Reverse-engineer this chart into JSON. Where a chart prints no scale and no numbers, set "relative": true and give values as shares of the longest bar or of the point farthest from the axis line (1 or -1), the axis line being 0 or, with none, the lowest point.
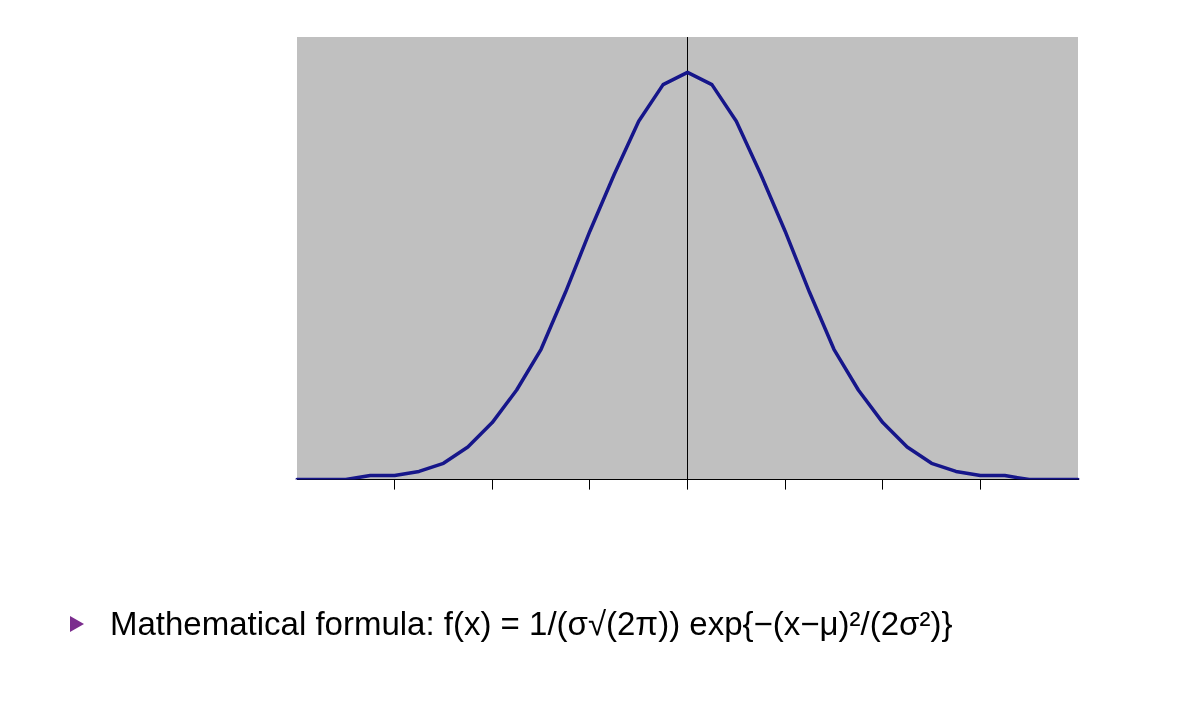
{
  "chart_data": {
    "type": "line",
    "relative": true,
    "color": "#16168a",
    "categories": [
      null,
      null,
      null,
      null,
      null,
      null,
      null,
      null,
      null,
      null,
      null,
      null,
      null,
      null,
      null,
      null,
      null,
      null,
      null,
      null,
      null,
      null,
      null,
      null,
      null,
      null,
      null,
      null,
      null,
      null,
      null,
      null,
      null
    ],
    "values": [
      0,
      0,
      0,
      0.01,
      0.01,
      0.02,
      0.04,
      0.08,
      0.14,
      0.22,
      0.32,
      0.46,
      0.61,
      0.75,
      0.88,
      0.97,
      1,
      0.97,
      0.88,
      0.75,
      0.61,
      0.46,
      0.32,
      0.22,
      0.14,
      0.08,
      0.04,
      0.02,
      0.01,
      0.01,
      0,
      0,
      0
    ],
    "annotations": [
      "Mathematical formula: f(x) = 1/(σ√(2π)) exp{−(x−μ)²/(2σ²)}"
    ]
  }
}
